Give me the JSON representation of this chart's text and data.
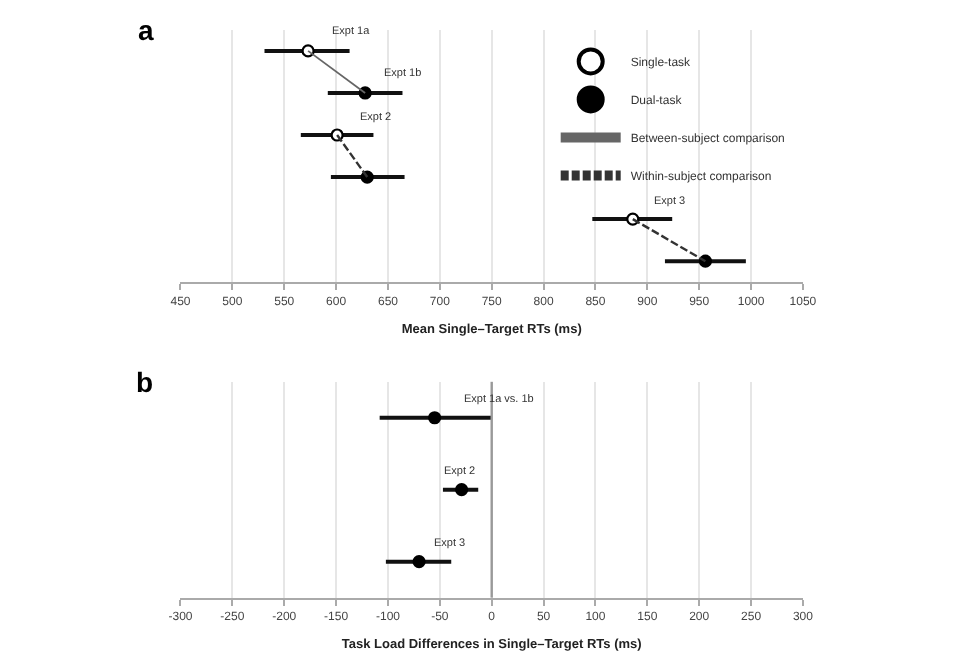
{
  "chart_data": [
    {
      "type": "scatter",
      "title": "a",
      "xlabel": "Mean Single–Target RTs (ms)",
      "orientation": "horizontal",
      "categories": [
        null,
        null,
        null,
        null,
        null,
        null
      ],
      "xlim": [
        450,
        1050
      ],
      "xticks": [
        450,
        500,
        550,
        600,
        650,
        700,
        750,
        800,
        850,
        900,
        950,
        1000,
        1050
      ],
      "grid": "x",
      "legend": "top right",
      "tick_labels": "x",
      "series": [
        {
          "type": "line",
          "name": "Between-subject comparison",
          "color": "#666666",
          "line_style": "solid",
          "marker": "none",
          "values": [
            573,
            628,
            null,
            null,
            null,
            null
          ]
        },
        {
          "type": "line",
          "name": "Within-subject comparison",
          "color": "#333333",
          "line_style": "dashed",
          "marker": "none",
          "values": [
            null,
            null,
            601,
            630,
            null,
            null
          ]
        },
        {
          "type": "line",
          "color": "#333333",
          "line_style": "dashed",
          "marker": "none",
          "values": [
            null,
            null,
            null,
            null,
            886,
            956
          ]
        },
        {
          "type": "scatter",
          "name": "Single-task",
          "color": "#ffffff",
          "marker": "circle",
          "values": [
            573,
            null,
            601,
            null,
            886,
            null
          ],
          "errors": [
            [
              531,
              613
            ],
            null,
            [
              566,
              636
            ],
            null,
            [
              847,
              924
            ],
            null
          ]
        },
        {
          "type": "scatter",
          "name": "Dual-task",
          "color": "#000000",
          "marker": "circle",
          "values": [
            null,
            628,
            null,
            630,
            null,
            956
          ],
          "errors": [
            null,
            [
              592,
              664
            ],
            null,
            [
              595,
              666
            ],
            null,
            [
              917,
              995
            ]
          ]
        }
      ],
      "annotations": [
        "Expt 1a",
        "Expt 1b",
        "Expt 2",
        "Expt 3"
      ]
    },
    {
      "type": "scatter",
      "title": "b",
      "xlabel": "Task Load Differences in Single–Target RTs (ms)",
      "orientation": "horizontal",
      "categories": [
        null,
        null,
        null
      ],
      "xlim": [
        -300,
        300
      ],
      "xticks": [
        -300,
        -250,
        -200,
        -150,
        -100,
        -50,
        0,
        50,
        100,
        150,
        200,
        250,
        300
      ],
      "grid": "x",
      "tick_labels": "x",
      "ref_lines": [
        {
          "axis": "x",
          "value": 0,
          "color": "#999999"
        }
      ],
      "series": [
        {
          "type": "scatter",
          "color": "#000000",
          "marker": "circle",
          "values": [
            -55,
            -29,
            -70
          ],
          "errors": [
            [
              -108,
              0
            ],
            [
              -47,
              -13
            ],
            [
              -102,
              -39
            ]
          ]
        }
      ],
      "annotations": [
        "Expt 1a vs. 1b",
        "Expt 2",
        "Expt 3"
      ]
    }
  ]
}
